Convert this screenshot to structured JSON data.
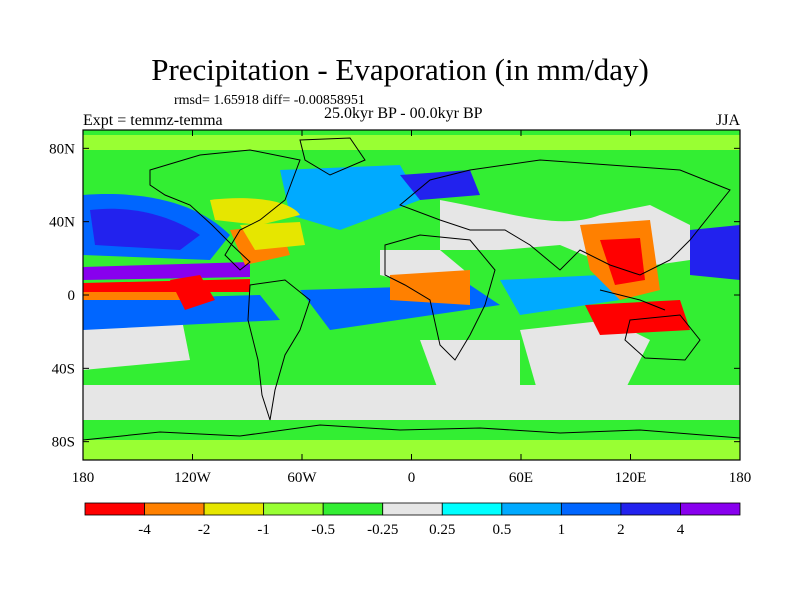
{
  "title": "Precipitation - Evaporation (in mm/day)",
  "stats": "rmsd= 1.65918 diff= -0.00858951",
  "experiment": "Expt = temmz-temma",
  "period": "25.0kyr BP - 00.0kyr BP",
  "season": "JJA",
  "map": {
    "x_ticks": [
      {
        "label": "180",
        "lon": -180
      },
      {
        "label": "120W",
        "lon": -120
      },
      {
        "label": "60W",
        "lon": -60
      },
      {
        "label": "0",
        "lon": 0
      },
      {
        "label": "60E",
        "lon": 60
      },
      {
        "label": "120E",
        "lon": 120
      },
      {
        "label": "180",
        "lon": 180
      }
    ],
    "y_ticks": [
      {
        "label": "80N",
        "lat": 80
      },
      {
        "label": "40N",
        "lat": 40
      },
      {
        "label": "0",
        "lat": 0
      },
      {
        "label": "40S",
        "lat": -40
      },
      {
        "label": "80S",
        "lat": -80
      }
    ],
    "lon_range": [
      -180,
      180
    ],
    "lat_range": [
      -90,
      90
    ]
  },
  "colorbar": {
    "colors": [
      "#ff0000",
      "#ff8000",
      "#e6e600",
      "#99ff33",
      "#33ee33",
      "#e6e6e6",
      "#00ffff",
      "#00aaff",
      "#0066ff",
      "#2222ee",
      "#8800ee"
    ],
    "labels": [
      "-4",
      "-2",
      "-1",
      "-0.5",
      "-0.25",
      "0.25",
      "0.5",
      "1",
      "2",
      "4"
    ]
  }
}
